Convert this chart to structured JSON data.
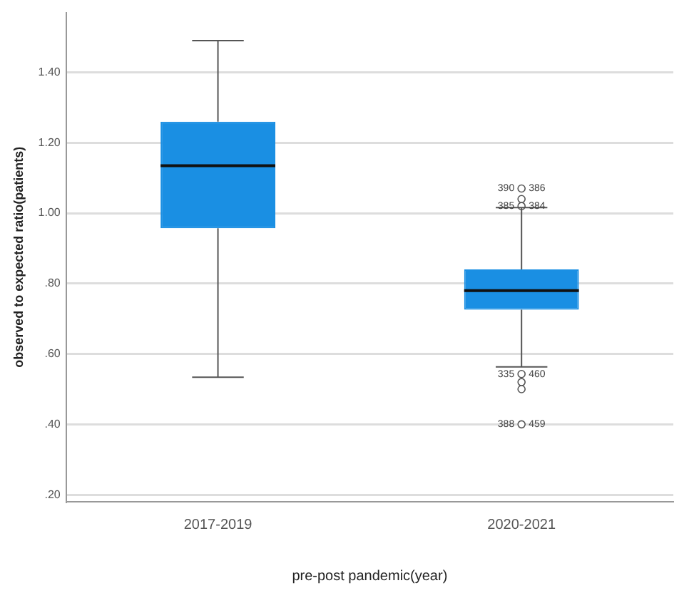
{
  "chart_data": {
    "type": "box",
    "xlabel": "pre-post pandemic(year)",
    "ylabel": "observed to expected ratio(patients)",
    "categories": [
      "2017-2019",
      "2020-2021"
    ],
    "color": "#1a8fe3",
    "boxes": [
      {
        "low": 0.534,
        "q1": 0.957,
        "median": 1.135,
        "q3": 1.26,
        "high": 1.49
      },
      {
        "low": 0.563,
        "q1": 0.726,
        "median": 0.78,
        "q3": 0.84,
        "high": 1.016
      }
    ],
    "series": [
      {
        "type": "scatter",
        "color": "#555555",
        "x": [
          "2020-2021",
          "2020-2021",
          "2020-2021",
          "2020-2021",
          "2020-2021",
          "2020-2021",
          "2020-2021"
        ],
        "values": [
          1.07,
          1.04,
          1.02,
          0.543,
          0.52,
          0.5,
          0.4
        ]
      }
    ],
    "marker": "circle",
    "ylim": [
      0.18,
      1.57
    ],
    "yticks": [
      {
        "value": 0.2,
        "label": ".20"
      },
      {
        "value": 0.4,
        "label": ".40"
      },
      {
        "value": 0.6,
        "label": ".60"
      },
      {
        "value": 0.8,
        "label": ".80"
      },
      {
        "value": 1.0,
        "label": "1.00"
      },
      {
        "value": 1.2,
        "label": "1.20"
      },
      {
        "value": 1.4,
        "label": "1.40"
      }
    ],
    "grid": "y",
    "annotations": [
      {
        "text": "390",
        "x": "2020-2021",
        "y": 1.07
      },
      {
        "text": "386",
        "x": "2020-2021",
        "y": 1.07
      },
      {
        "text": "385",
        "x": "2020-2021",
        "y": 1.02
      },
      {
        "text": "384",
        "x": "2020-2021",
        "y": 1.02
      },
      {
        "text": "335",
        "x": "2020-2021",
        "y": 0.543
      },
      {
        "text": "460",
        "x": "2020-2021",
        "y": 0.543
      },
      {
        "text": "388",
        "x": "2020-2021",
        "y": 0.4
      },
      {
        "text": "459",
        "x": "2020-2021",
        "y": 0.4
      }
    ]
  }
}
